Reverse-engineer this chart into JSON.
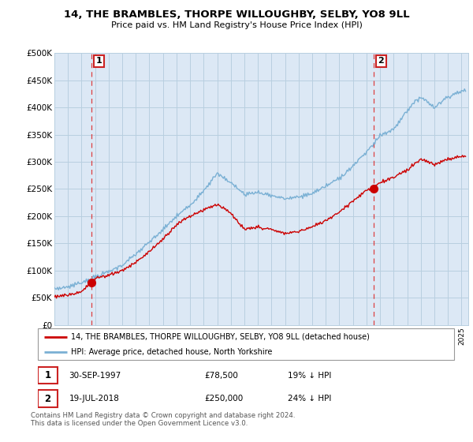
{
  "title": "14, THE BRAMBLES, THORPE WILLOUGHBY, SELBY, YO8 9LL",
  "subtitle": "Price paid vs. HM Land Registry's House Price Index (HPI)",
  "sale1_year": 1997.75,
  "sale1_price": 78500,
  "sale1_label": "1",
  "sale1_date": "30-SEP-1997",
  "sale1_pct": "19%",
  "sale2_year": 2018.54,
  "sale2_price": 250000,
  "sale2_label": "2",
  "sale2_date": "19-JUL-2018",
  "sale2_pct": "24%",
  "legend_label1": "14, THE BRAMBLES, THORPE WILLOUGHBY, SELBY, YO8 9LL (detached house)",
  "legend_label2": "HPI: Average price, detached house, North Yorkshire",
  "footer1": "Contains HM Land Registry data © Crown copyright and database right 2024.",
  "footer2": "This data is licensed under the Open Government Licence v3.0.",
  "price_color": "#cc0000",
  "hpi_color": "#7ab0d4",
  "chart_bg": "#dce8f5",
  "background_color": "#ffffff",
  "grid_color": "#b8cfe0",
  "ylim": [
    0,
    500000
  ],
  "yticks": [
    0,
    50000,
    100000,
    150000,
    200000,
    250000,
    300000,
    350000,
    400000,
    450000,
    500000
  ],
  "xlim_start": 1995.0,
  "xlim_end": 2025.5,
  "hpi_key_years": [
    1995,
    1996,
    1997,
    1998,
    1999,
    2000,
    2001,
    2002,
    2003,
    2004,
    2005,
    2006,
    2007,
    2008,
    2009,
    2010,
    2011,
    2012,
    2013,
    2014,
    2015,
    2016,
    2017,
    2018,
    2019,
    2020,
    2021,
    2022,
    2023,
    2024,
    2025
  ],
  "hpi_key_vals": [
    66000,
    70000,
    78000,
    88000,
    98000,
    110000,
    130000,
    152000,
    175000,
    200000,
    220000,
    248000,
    278000,
    262000,
    240000,
    244000,
    238000,
    232000,
    235000,
    242000,
    255000,
    270000,
    292000,
    318000,
    348000,
    360000,
    395000,
    420000,
    400000,
    420000,
    430000
  ],
  "price_key_years": [
    1995,
    1996,
    1997,
    1997.75,
    1998,
    1999,
    2000,
    2001,
    2002,
    2003,
    2004,
    2005,
    2006,
    2007,
    2008,
    2009,
    2010,
    2011,
    2012,
    2013,
    2014,
    2015,
    2016,
    2017,
    2018,
    2018.54,
    2019,
    2020,
    2021,
    2022,
    2023,
    2024,
    2025
  ],
  "price_key_vals": [
    52000,
    55000,
    62000,
    78500,
    85000,
    92000,
    100000,
    115000,
    135000,
    158000,
    185000,
    200000,
    212000,
    222000,
    205000,
    175000,
    180000,
    175000,
    168000,
    172000,
    180000,
    192000,
    208000,
    228000,
    248000,
    250000,
    262000,
    272000,
    285000,
    305000,
    295000,
    305000,
    310000
  ]
}
